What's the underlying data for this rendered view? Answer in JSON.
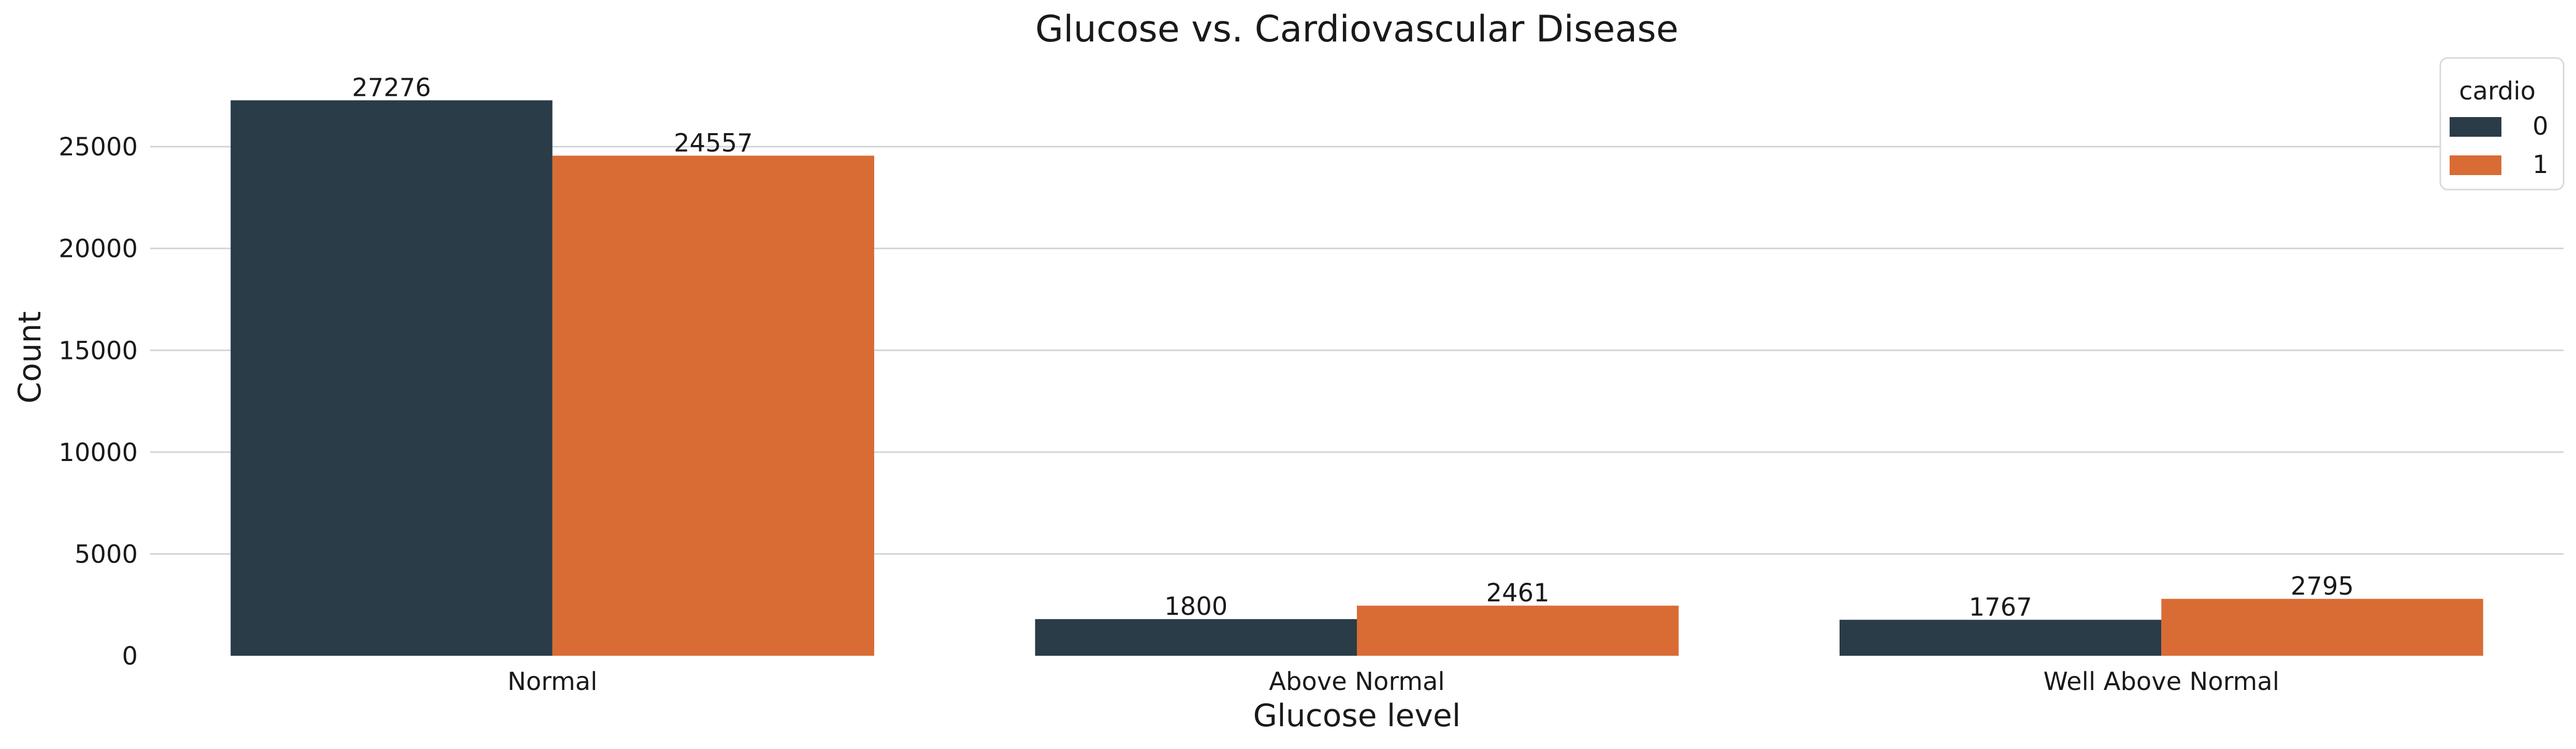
{
  "chart_data": {
    "type": "bar",
    "title": "Glucose vs. Cardiovascular Disease",
    "xlabel": "Glucose level",
    "ylabel": "Count",
    "categories": [
      "Normal",
      "Above Normal",
      "Well Above Normal"
    ],
    "series": [
      {
        "name": "0",
        "color": "#2a3c48",
        "values": [
          27276,
          1800,
          1767
        ]
      },
      {
        "name": "1",
        "color": "#d96c35",
        "values": [
          24557,
          2461,
          2795
        ]
      }
    ],
    "yticks": [
      0,
      5000,
      10000,
      15000,
      20000,
      25000
    ],
    "ylim": [
      0,
      28640
    ],
    "grid": true,
    "legend": {
      "title": "cardio",
      "placement": "top-right"
    }
  }
}
